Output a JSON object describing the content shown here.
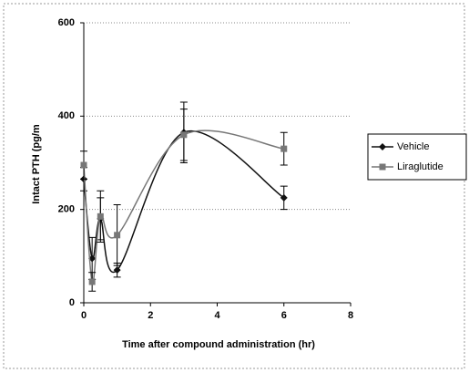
{
  "chart_data": {
    "type": "line",
    "xlabel": "Time after compound administration (hr)",
    "ylabel": "Intact PTH (pg/m",
    "xlim": [
      0,
      8
    ],
    "xticks": [
      0,
      2,
      4,
      6,
      8
    ],
    "ylim": [
      0,
      600
    ],
    "yticks": [
      0,
      200,
      400,
      600
    ],
    "grid": true,
    "legend": "right",
    "series": [
      {
        "name": "Vehicle",
        "color": "#111111",
        "marker": "diamond",
        "x": [
          0,
          0.25,
          0.5,
          1,
          3,
          6
        ],
        "values": [
          265,
          95,
          180,
          70,
          365,
          225
        ],
        "errors": [
          25,
          45,
          45,
          15,
          65,
          25
        ]
      },
      {
        "name": "Liraglutide",
        "color": "#777777",
        "marker": "square",
        "x": [
          0,
          0.25,
          0.5,
          1,
          3,
          6
        ],
        "values": [
          295,
          45,
          185,
          145,
          360,
          330
        ],
        "errors": [
          30,
          20,
          55,
          65,
          55,
          35
        ]
      }
    ]
  }
}
